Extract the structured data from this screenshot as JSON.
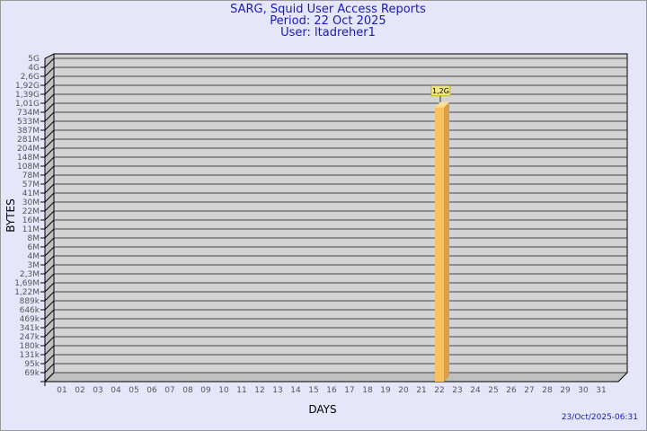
{
  "header": {
    "title": "SARG, Squid User Access Reports",
    "period": "Period: 22 Oct 2025",
    "user": "User: ltadreher1"
  },
  "timestamp": "23/Oct/2025-06:31",
  "chart_data": {
    "type": "bar",
    "xlabel": "DAYS",
    "ylabel": "BYTES",
    "y_scale": "log",
    "y_tick_labels": [
      "69k",
      "95k",
      "131k",
      "180k",
      "247k",
      "341k",
      "469k",
      "646k",
      "889k",
      "1,22M",
      "1,69M",
      "2,3M",
      "3M",
      "4M",
      "6M",
      "8M",
      "11M",
      "16M",
      "22M",
      "30M",
      "41M",
      "57M",
      "78M",
      "108M",
      "148M",
      "204M",
      "281M",
      "387M",
      "533M",
      "734M",
      "1,01G",
      "1,39G",
      "1,92G",
      "2,6G",
      "4G",
      "5G"
    ],
    "y_tick_values": [
      69000,
      95000,
      131000,
      180000,
      247000,
      341000,
      469000,
      646000,
      889000,
      1220000,
      1690000,
      2300000,
      3000000,
      4000000,
      6000000,
      8000000,
      11000000,
      16000000,
      22000000,
      30000000,
      41000000,
      57000000,
      78000000,
      108000000,
      148000000,
      204000000,
      281000000,
      387000000,
      533000000,
      734000000,
      1010000000,
      1390000000,
      1920000000,
      2600000000,
      4000000000,
      5000000000
    ],
    "categories": [
      "01",
      "02",
      "03",
      "04",
      "05",
      "06",
      "07",
      "08",
      "09",
      "10",
      "11",
      "12",
      "13",
      "14",
      "15",
      "16",
      "17",
      "18",
      "19",
      "20",
      "21",
      "22",
      "23",
      "24",
      "25",
      "26",
      "27",
      "28",
      "29",
      "30",
      "31"
    ],
    "values": [
      null,
      null,
      null,
      null,
      null,
      null,
      null,
      null,
      null,
      null,
      null,
      null,
      null,
      null,
      null,
      null,
      null,
      null,
      null,
      null,
      null,
      1200000000,
      null,
      null,
      null,
      null,
      null,
      null,
      null,
      null,
      null
    ],
    "data_labels": {
      "22": "1,2G"
    },
    "grid": true,
    "colors": {
      "bar": "#f9c060",
      "bar_side": "#d9a048",
      "bar_top": "#ffe090",
      "plot_bg": "#d3d3d3",
      "wall": "#c0c0c0",
      "label_bg": "#f0e68c",
      "title": "#1a1ab4"
    }
  }
}
